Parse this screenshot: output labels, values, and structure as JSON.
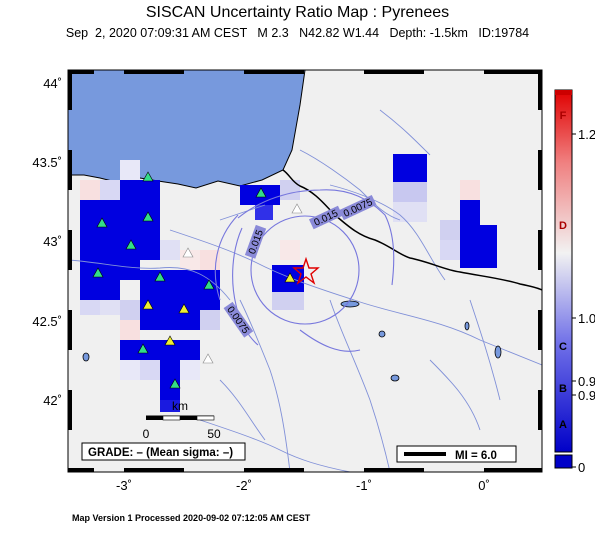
{
  "title": "SISCAN Uncertainty Ratio Map : Pyrenees",
  "subtitle": "Sep  2, 2020 07:09:31 AM CEST   M 2.3   N42.82 W1.44   Depth: -1.5km   ID:19784",
  "footer": "Map Version 1 Processed 2020-09-02 07:12:05 AM CEST",
  "lat_labels": [
    "44˚",
    "43.5˚",
    "43˚",
    "42.5˚",
    "42˚"
  ],
  "lon_labels": [
    "-3˚",
    "-2˚",
    "-1˚",
    "0˚"
  ],
  "contour_labels": [
    "0.0075",
    "0.015",
    "0.015",
    "0.0075"
  ],
  "scale_bar": {
    "unit": "km",
    "ticks": [
      "0",
      "50"
    ]
  },
  "grade_text": "GRADE: – (Mean sigma: –)",
  "mi_legend": "MI = 6.0",
  "colorbar": {
    "letters": [
      "F",
      "D",
      "C",
      "B",
      "A"
    ],
    "values": [
      "1.2",
      "1.0",
      "0.9",
      "0.9",
      "0"
    ]
  },
  "colors": {
    "sea": "#7799dd",
    "land": "#f0f0f0",
    "high": "#e00000",
    "low": "#0000c8"
  }
}
